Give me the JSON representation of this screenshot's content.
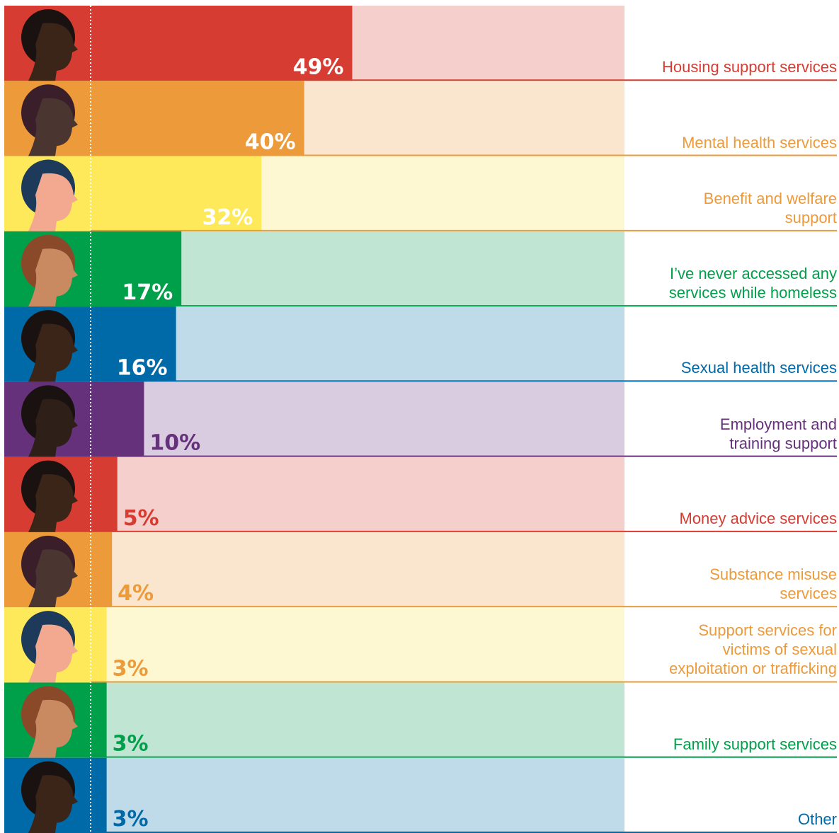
{
  "chart_data": {
    "type": "bar",
    "orientation": "horizontal",
    "categories": [
      "Housing support services",
      "Mental health services",
      "Benefit and welfare\nsupport",
      "I’ve never accessed any\nservices while homeless",
      "Sexual health services",
      "Employment and\ntraining support",
      "Money advice services",
      "Substance misuse\nservices",
      "Support services for\nvictims of sexual\nexploitation or trafficking",
      "Family support services",
      "Other"
    ],
    "values": [
      49,
      40,
      32,
      17,
      16,
      10,
      5,
      4,
      3,
      3,
      3
    ],
    "value_labels": [
      "49%",
      "40%",
      "32%",
      "17%",
      "16%",
      "10%",
      "5%",
      "4%",
      "3%",
      "3%",
      "3%"
    ],
    "xlim": [
      0,
      100
    ],
    "colors": [
      "#d63c31",
      "#ec9a3a",
      "#fde95a",
      "#00a04a",
      "#0069a8",
      "#66317b",
      "#d63c31",
      "#ec9a3a",
      "#fde95a",
      "#00a04a",
      "#0069a8"
    ],
    "background_colors": [
      "#f5cfcc",
      "#fae5cf",
      "#fef8d2",
      "#c0e6d3",
      "#bfdbea",
      "#d9cce0",
      "#f5cfcc",
      "#fae5cf",
      "#fef8d2",
      "#c0e6d3",
      "#bfdbea"
    ],
    "text_colors": [
      "#d63c31",
      "#ec9a3a",
      "#ec9a3a",
      "#00a04a",
      "#0069a8",
      "#66317b",
      "#d63c31",
      "#ec9a3a",
      "#ec9a3a",
      "#00a04a",
      "#0069a8"
    ]
  }
}
